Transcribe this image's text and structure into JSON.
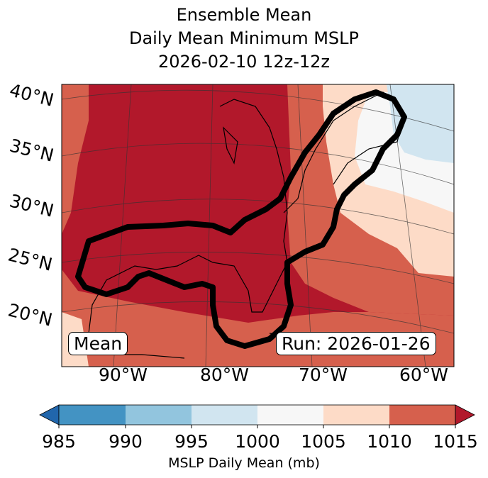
{
  "title": {
    "line1": "Ensemble Mean",
    "line2": "Daily Mean Minimum MSLP",
    "line3": "2026-02-10 12z-12z"
  },
  "lat_labels": [
    "40°N",
    "35°N",
    "30°N",
    "25°N",
    "20°N"
  ],
  "lon_labels": [
    "90°W",
    "80°W",
    "70°W",
    "60°W"
  ],
  "mean_label": "Mean",
  "run_label": "Run: 2026-01-26",
  "colorbar": {
    "ticks": [
      "985",
      "990",
      "995",
      "1000",
      "1005",
      "1010",
      "1015"
    ],
    "label": "MSLP Daily Mean (mb)",
    "colors": [
      "#2166ac",
      "#4393c3",
      "#92c5de",
      "#d1e5f0",
      "#f7f7f7",
      "#fddbc7",
      "#d6604d",
      "#b2182b"
    ]
  }
}
